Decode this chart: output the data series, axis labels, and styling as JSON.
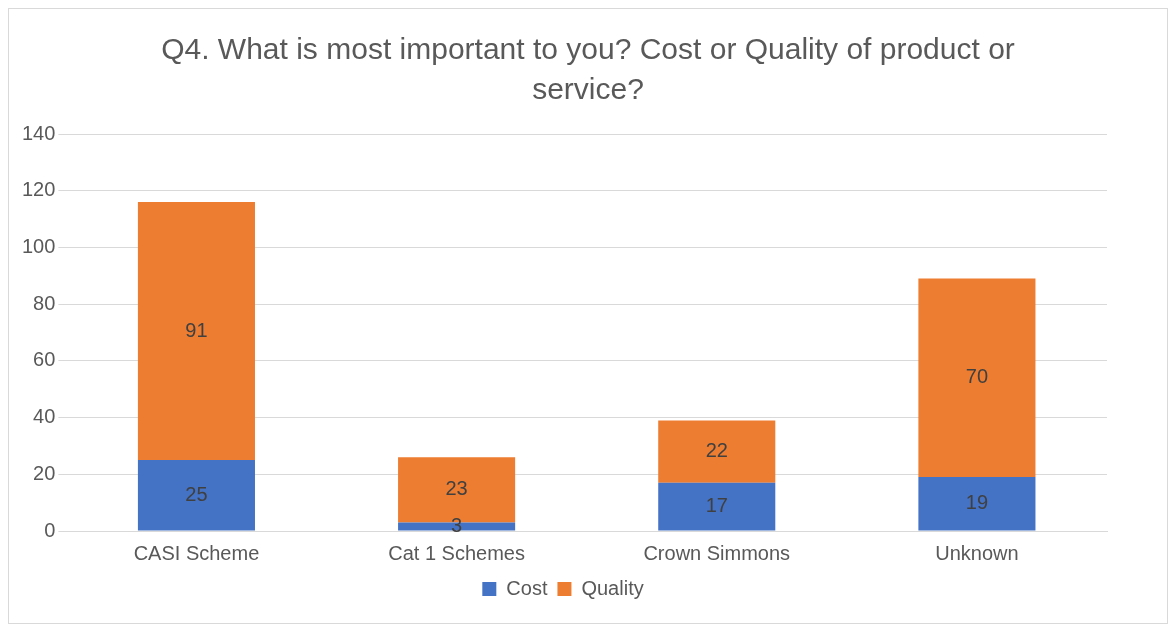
{
  "chart_data": {
    "type": "bar",
    "title": "Q4. What is most important to you? Cost or Quality of product or service?",
    "categories": [
      "CASI Scheme",
      "Cat 1 Schemes",
      "Crown Simmons",
      "Unknown"
    ],
    "stacked": true,
    "series": [
      {
        "name": "Cost",
        "color": "#4472c4",
        "values": [
          25,
          3,
          17,
          19
        ]
      },
      {
        "name": "Quality",
        "color": "#ed7d31",
        "values": [
          91,
          23,
          22,
          70
        ]
      }
    ],
    "ylim": [
      0,
      140
    ],
    "yticks": [
      0,
      20,
      40,
      60,
      80,
      100,
      120,
      140
    ],
    "grid": "y",
    "legend": "bottom",
    "data_labels": true
  }
}
